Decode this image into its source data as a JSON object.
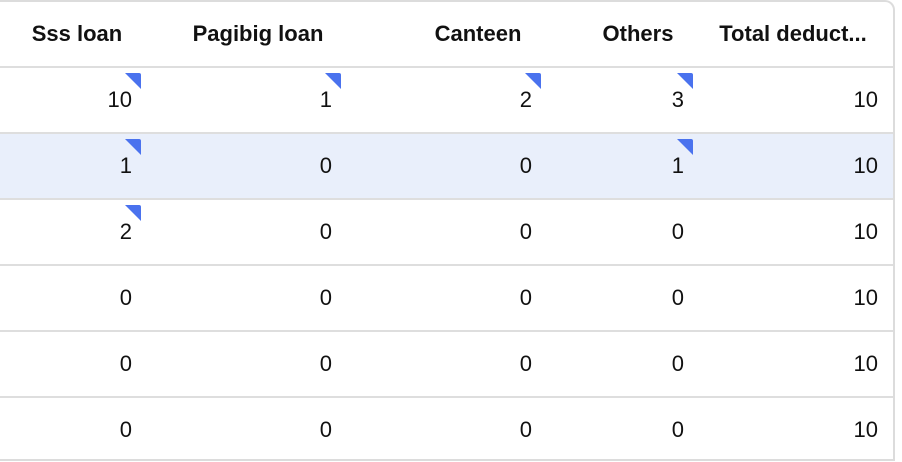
{
  "columns": [
    "Sss loan",
    "Pagibig loan",
    "Canteen",
    "Others",
    "Total deduct..."
  ],
  "rows": [
    {
      "cells": [
        "10",
        "1",
        "2",
        "3",
        "10"
      ],
      "marked": [
        true,
        true,
        true,
        true,
        false
      ],
      "selected": false
    },
    {
      "cells": [
        "1",
        "0",
        "0",
        "1",
        "10"
      ],
      "marked": [
        true,
        false,
        false,
        true,
        false
      ],
      "selected": true
    },
    {
      "cells": [
        "2",
        "0",
        "0",
        "0",
        "10"
      ],
      "marked": [
        true,
        false,
        false,
        false,
        false
      ],
      "selected": false
    },
    {
      "cells": [
        "0",
        "0",
        "0",
        "0",
        "10"
      ],
      "marked": [
        false,
        false,
        false,
        false,
        false
      ],
      "selected": false
    },
    {
      "cells": [
        "0",
        "0",
        "0",
        "0",
        "10"
      ],
      "marked": [
        false,
        false,
        false,
        false,
        false
      ],
      "selected": false
    },
    {
      "cells": [
        "0",
        "0",
        "0",
        "0",
        "10"
      ],
      "marked": [
        false,
        false,
        false,
        false,
        false
      ],
      "selected": false
    }
  ],
  "colors": {
    "marker": "#4a72ee",
    "selected_row": "#e9effb",
    "border": "#dedede"
  }
}
